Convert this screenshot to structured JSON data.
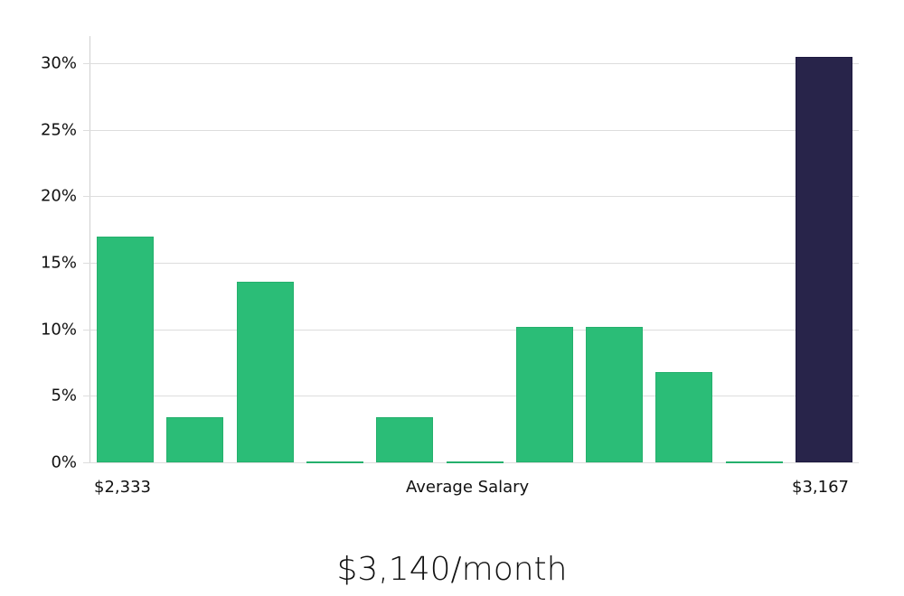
{
  "chart_data": {
    "type": "bar",
    "title": "",
    "xlabel": "Average Salary",
    "ylabel": "",
    "x_range_labels": {
      "min": "$2,333",
      "max": "$3,167"
    },
    "categories": [
      "bin1",
      "bin2",
      "bin3",
      "bin4",
      "bin5",
      "bin6",
      "bin7",
      "bin8",
      "bin9",
      "bin10",
      "bin11"
    ],
    "values": [
      17.0,
      3.4,
      13.6,
      0,
      3.4,
      0,
      10.2,
      10.2,
      6.8,
      0,
      30.5
    ],
    "highlight_index": 10,
    "colors": {
      "bar": "#2bbd77",
      "highlight": "#28244a",
      "grid": "#dddddd"
    },
    "yticks": [
      0,
      5,
      10,
      15,
      20,
      25,
      30
    ],
    "ytick_labels": [
      "0%",
      "5%",
      "10%",
      "15%",
      "20%",
      "25%",
      "30%"
    ],
    "ylim": [
      0,
      32
    ],
    "grid": true,
    "legend": "none"
  },
  "axis": {
    "x_min_label": "$2,333",
    "x_title": "Average Salary",
    "x_max_label": "$3,167"
  },
  "summary": {
    "salary": "$3,140/month"
  }
}
